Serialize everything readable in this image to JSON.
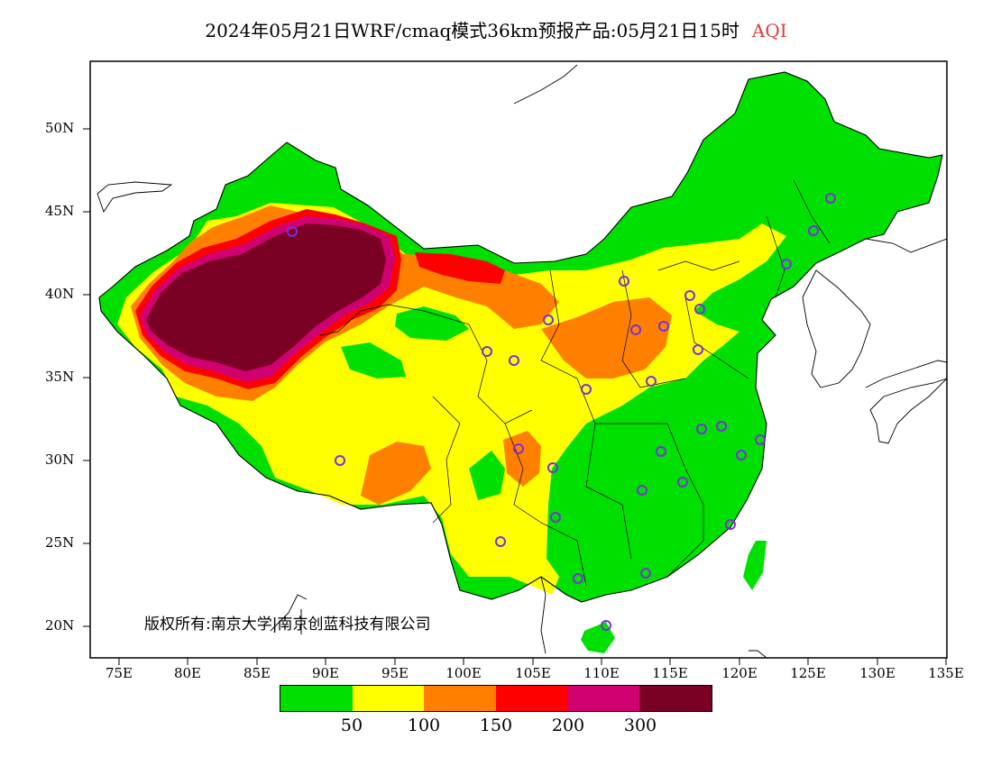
{
  "title": {
    "main": "2024年05月21日WRF/cmaq模式36km预报产品:05月21日15时",
    "variable": "AQI"
  },
  "axes": {
    "lat_labels": [
      "50N",
      "45N",
      "40N",
      "35N",
      "30N",
      "25N",
      "20N"
    ],
    "lon_labels": [
      "75E",
      "80E",
      "85E",
      "90E",
      "95E",
      "100E",
      "105E",
      "110E",
      "115E",
      "120E",
      "125E",
      "130E",
      "135E"
    ]
  },
  "copyright": "版权所有:南京大学|南京创蓝科技有限公司",
  "legend": {
    "colors": [
      "#00e000",
      "#ffff00",
      "#ff8000",
      "#ff0000",
      "#d00070",
      "#7a0024"
    ],
    "ticks": [
      "50",
      "100",
      "150",
      "200",
      "300"
    ]
  },
  "map_colors": {
    "good": "#00e000",
    "moderate": "#ffff00",
    "unhealthy_sensitive": "#ff8000",
    "unhealthy": "#ff0000",
    "very_unhealthy": "#d00070",
    "hazardous": "#7a0024",
    "station_marker": "#7b2fe0"
  }
}
